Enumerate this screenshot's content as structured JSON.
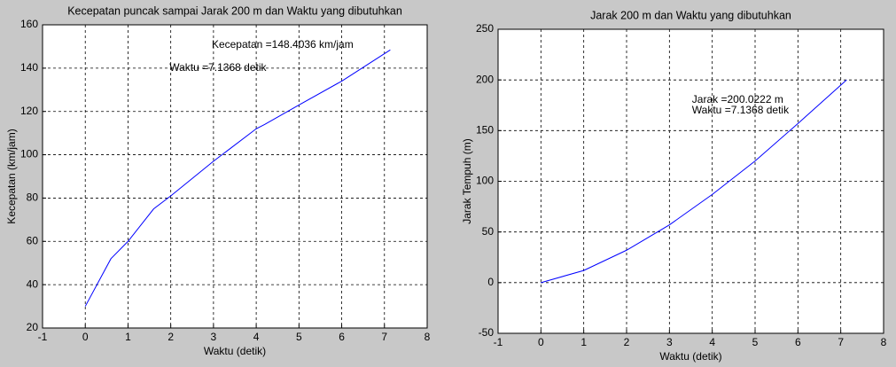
{
  "chart_data": [
    {
      "type": "line",
      "title": "Kecepatan puncak sampai Jarak 200 m dan Waktu yang dibutuhkan",
      "x_label": "Waktu (detik)",
      "y_label": "Kecepatan (km/jam)",
      "x": [
        0,
        0.6,
        1,
        1.6,
        2,
        3,
        4,
        4.2,
        5,
        6,
        7.1368
      ],
      "values": [
        30,
        52,
        60,
        75,
        81,
        97,
        112,
        114,
        123,
        134,
        148.4
      ],
      "color": "#0000ff",
      "xlim": [
        -1,
        8
      ],
      "xticks": [
        -1,
        0,
        1,
        2,
        3,
        4,
        5,
        6,
        7,
        8
      ],
      "ylim": [
        20,
        160
      ],
      "yticks": [
        20,
        40,
        60,
        80,
        100,
        120,
        140,
        160
      ],
      "grid": true,
      "annotations": [
        "Kecepatan =148.4036 km/jam",
        "Waktu =7.1368 detik"
      ]
    },
    {
      "type": "line",
      "title": "Jarak 200 m dan Waktu yang dibutuhkan",
      "x_label": "Waktu (detik)",
      "y_label": "Jarak Tempuh (m)",
      "x": [
        0,
        1,
        2,
        3,
        4,
        5,
        6,
        7.1368
      ],
      "values": [
        0,
        12,
        32,
        57,
        87,
        120,
        157,
        200
      ],
      "color": "#0000ff",
      "xlim": [
        -1,
        8
      ],
      "xticks": [
        -1,
        0,
        1,
        2,
        3,
        4,
        5,
        6,
        7,
        8
      ],
      "ylim": [
        -50,
        250
      ],
      "yticks": [
        -50,
        0,
        50,
        100,
        150,
        200,
        250
      ],
      "grid": true,
      "annotations": [
        "Jarak =200.0222 m",
        "Waktu =7.1368 detik"
      ]
    }
  ]
}
